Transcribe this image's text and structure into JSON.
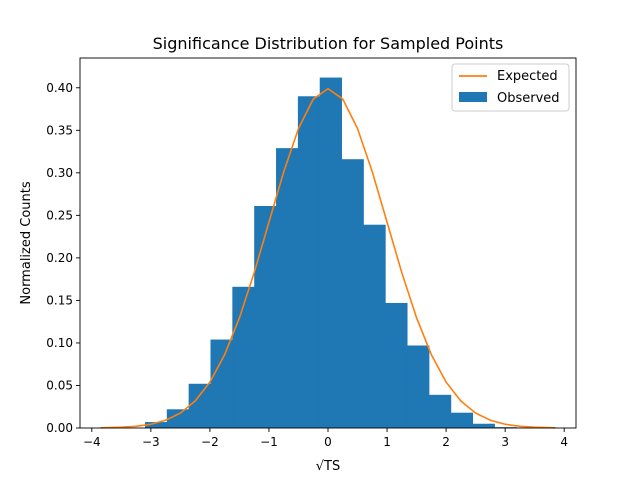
{
  "chart_data": {
    "type": "bar",
    "title": "Significance Distribution for Sampled Points",
    "xlabel": "√TS",
    "ylabel": "Normalized Counts",
    "xlim": [
      -4.2,
      4.2
    ],
    "ylim": [
      0,
      0.435
    ],
    "xticks": [
      -4,
      -3,
      -2,
      -1,
      0,
      1,
      2,
      3,
      4
    ],
    "yticks": [
      0.0,
      0.05,
      0.1,
      0.15,
      0.2,
      0.25,
      0.3,
      0.35,
      0.4
    ],
    "ytick_labels": [
      "0.00",
      "0.05",
      "0.10",
      "0.15",
      "0.20",
      "0.25",
      "0.30",
      "0.35",
      "0.40"
    ],
    "grid": false,
    "legend_position": "top-right",
    "series": [
      {
        "name": "Observed",
        "kind": "histogram",
        "color": "#1f77b4",
        "bin_edges": [
          -3.1,
          -2.73,
          -2.36,
          -1.99,
          -1.62,
          -1.25,
          -0.88,
          -0.51,
          -0.14,
          0.23,
          0.6,
          0.97,
          1.34,
          1.71,
          2.08,
          2.45,
          2.82,
          3.19
        ],
        "values": [
          0.007,
          0.022,
          0.052,
          0.104,
          0.166,
          0.261,
          0.329,
          0.39,
          0.412,
          0.316,
          0.239,
          0.147,
          0.097,
          0.039,
          0.018,
          0.005,
          0.001
        ]
      },
      {
        "name": "Expected",
        "kind": "line",
        "color": "#ff7f0e",
        "x": [
          -3.85,
          -3.5,
          -3.25,
          -3.0,
          -2.75,
          -2.5,
          -2.25,
          -2.0,
          -1.75,
          -1.5,
          -1.25,
          -1.0,
          -0.75,
          -0.5,
          -0.25,
          0.0,
          0.25,
          0.5,
          0.75,
          1.0,
          1.25,
          1.5,
          1.75,
          2.0,
          2.25,
          2.5,
          2.75,
          3.0,
          3.25,
          3.5,
          3.85
        ],
        "y": [
          0.0002,
          0.0009,
          0.002,
          0.0044,
          0.0091,
          0.0175,
          0.0317,
          0.054,
          0.0863,
          0.1295,
          0.1826,
          0.242,
          0.3011,
          0.3521,
          0.3867,
          0.3989,
          0.3867,
          0.3521,
          0.3011,
          0.242,
          0.1826,
          0.1295,
          0.0863,
          0.054,
          0.0317,
          0.0175,
          0.0091,
          0.0044,
          0.002,
          0.0009,
          0.0002
        ]
      }
    ]
  }
}
